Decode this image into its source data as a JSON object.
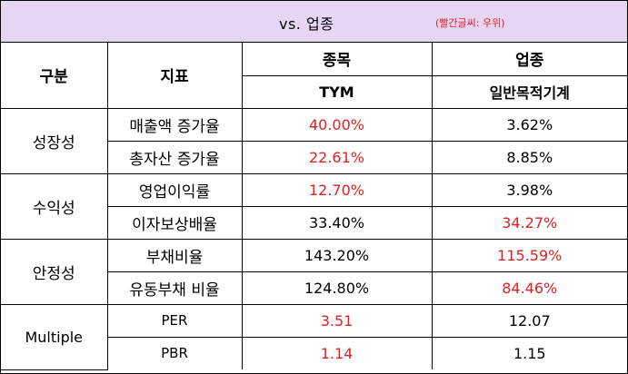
{
  "header": {
    "title": "vs. 업종",
    "note": "(빨간글씨: 우위)"
  },
  "columns": {
    "category": "구분",
    "metric": "지표",
    "stock": "종목",
    "stock_name": "TYM",
    "industry": "업종",
    "industry_name": "일반목적기계"
  },
  "colors": {
    "advantage": "#e02020",
    "title_bg": "#e6d6f4"
  },
  "groups": [
    {
      "category": "성장성",
      "rows": [
        {
          "metric": "매출액 증가율",
          "stock": "40.00%",
          "industry": "3.62%",
          "stock_red": true,
          "industry_red": false
        },
        {
          "metric": "총자산 증가율",
          "stock": "22.61%",
          "industry": "8.85%",
          "stock_red": true,
          "industry_red": false
        }
      ]
    },
    {
      "category": "수익성",
      "rows": [
        {
          "metric": "영업이익률",
          "stock": "12.70%",
          "industry": "3.98%",
          "stock_red": true,
          "industry_red": false
        },
        {
          "metric": "이자보상배율",
          "stock": "33.40%",
          "industry": "34.27%",
          "stock_red": false,
          "industry_red": true
        }
      ]
    },
    {
      "category": "안정성",
      "rows": [
        {
          "metric": "부채비율",
          "stock": "143.20%",
          "industry": "115.59%",
          "stock_red": false,
          "industry_red": true
        },
        {
          "metric": "유동부채 비율",
          "stock": "124.80%",
          "industry": "84.46%",
          "stock_red": false,
          "industry_red": true
        }
      ]
    },
    {
      "category": "Multiple",
      "rows": [
        {
          "metric": "PER",
          "stock": "3.51",
          "industry": "12.07",
          "stock_red": true,
          "industry_red": false
        },
        {
          "metric": "PBR",
          "stock": "1.14",
          "industry": "1.15",
          "stock_red": true,
          "industry_red": false
        }
      ]
    }
  ]
}
